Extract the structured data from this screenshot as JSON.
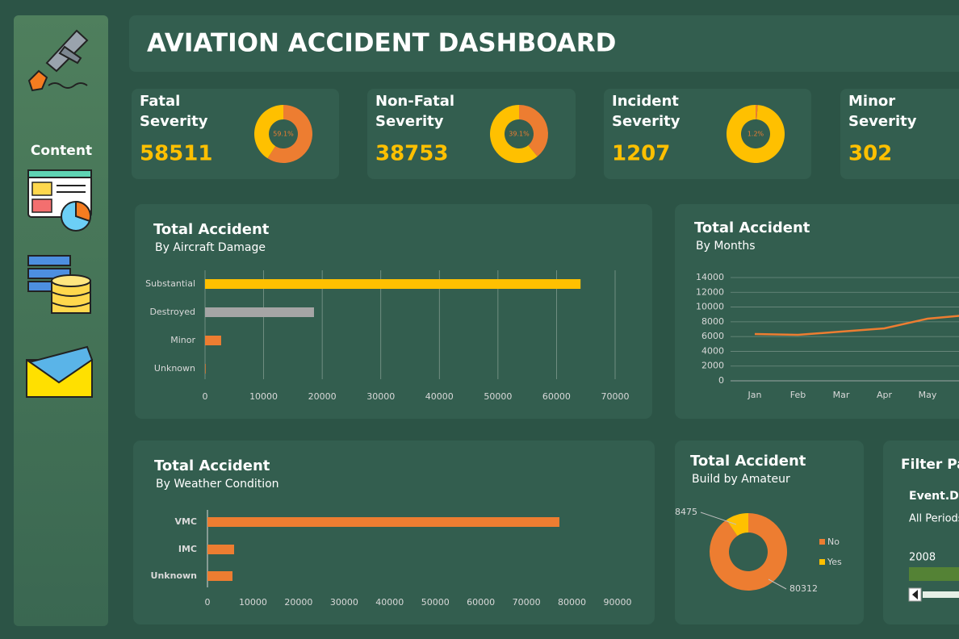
{
  "header": {
    "title": "AVIATION ACCIDENT DASHBOARD"
  },
  "sidebar": {
    "label": "Content"
  },
  "kpis": [
    {
      "title": "Fatal Severity",
      "value": 58511,
      "share": 59.1,
      "share_label": "59.1%"
    },
    {
      "title": "Non-Fatal Severity",
      "value": 38753,
      "share": 39.1,
      "share_label": "39.1%"
    },
    {
      "title": "Incident Severity",
      "value": 1207,
      "share": 1.2,
      "share_label": "1.2%"
    },
    {
      "title": "Minor Severity",
      "value": 302
    }
  ],
  "chart_data": [
    {
      "type": "hbar",
      "title": "Total Accident",
      "subtitle": "By Aircraft Damage",
      "categories": [
        "Substantial",
        "Destroyed",
        "Minor",
        "Unknown"
      ],
      "values": [
        64100,
        18600,
        2750,
        100
      ],
      "colors": [
        "#ffc000",
        "#a5a5a5",
        "#ed7d31",
        "#ed7d31"
      ],
      "xlim": [
        0,
        70000
      ],
      "xticks": [
        0,
        10000,
        20000,
        30000,
        40000,
        50000,
        60000,
        70000
      ],
      "grid": true
    },
    {
      "type": "line",
      "title": "Total Accident",
      "subtitle": "By Months",
      "categories": [
        "Jan",
        "Feb",
        "Mar",
        "Apr",
        "May",
        null
      ],
      "values": [
        6340,
        6230,
        6670,
        7110,
        8420,
        8950
      ],
      "color": "#ed7d31",
      "ylim": [
        0,
        14000
      ],
      "yticks": [
        0,
        2000,
        4000,
        6000,
        8000,
        10000,
        12000,
        14000
      ],
      "grid": true
    },
    {
      "type": "hbar",
      "title": "Total Accident",
      "subtitle": "By Weather Condition",
      "categories": [
        "VMC",
        "IMC",
        "Unknown"
      ],
      "values": [
        77240,
        5850,
        5490
      ],
      "colors": [
        "#ed7d31",
        "#ed7d31",
        "#ed7d31"
      ],
      "xlim": [
        0,
        90000
      ],
      "xticks": [
        0,
        10000,
        20000,
        30000,
        40000,
        50000,
        60000,
        70000,
        80000,
        90000
      ],
      "grid": false
    },
    {
      "type": "donut",
      "title": "Total Accident",
      "subtitle": "Build by Amateur",
      "categories": [
        "No",
        "Yes"
      ],
      "values": [
        80312,
        8475
      ],
      "colors": [
        "#ed7d31",
        "#ffc000"
      ],
      "legend": "right"
    }
  ],
  "filter": {
    "title": "Filter Panel",
    "field": "Event.Date",
    "period": "All Periods",
    "year": "2008"
  }
}
